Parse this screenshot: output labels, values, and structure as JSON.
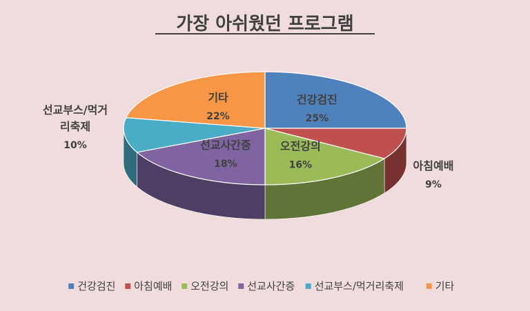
{
  "chart_data": {
    "type": "pie",
    "title": "가장 아쉬웠던 프로그램",
    "slices": [
      {
        "name": "건강검진",
        "value": 25,
        "pct_label": "25%",
        "color": "#4f81bd"
      },
      {
        "name": "아침예배",
        "value": 9,
        "pct_label": "9%",
        "color": "#c0504d"
      },
      {
        "name": "오전강의",
        "value": 16,
        "pct_label": "16%",
        "color": "#9bbb59"
      },
      {
        "name": "선교사간증",
        "value": 18,
        "pct_label": "18%",
        "color": "#8064a2"
      },
      {
        "name": "선교부스/먹거리축제",
        "value": 10,
        "pct_label": "10%",
        "color": "#4bacc6"
      },
      {
        "name": "기타",
        "value": 22,
        "pct_label": "22%",
        "color": "#f79646"
      }
    ],
    "legend_position": "bottom",
    "style": "3d-pie"
  }
}
